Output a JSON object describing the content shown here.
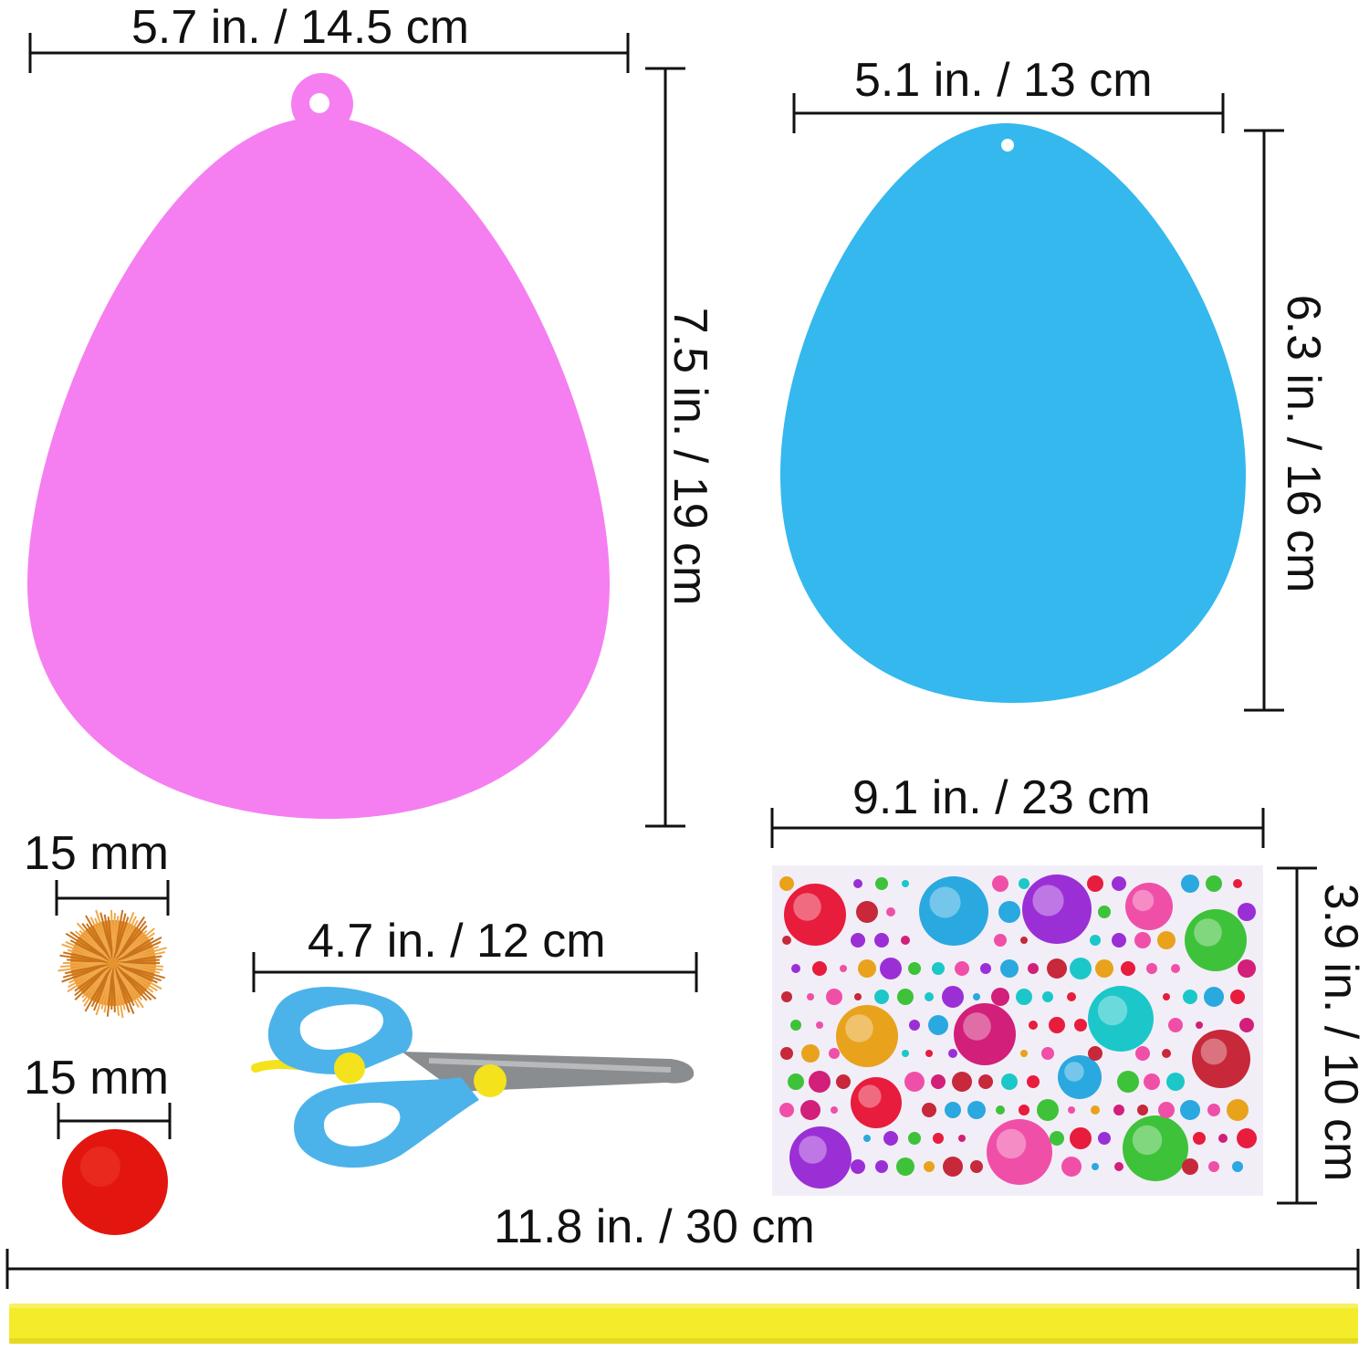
{
  "items": {
    "pink_egg": {
      "color": "#f57ff0",
      "width_label": "5.7 in. / 14.5 cm",
      "height_label": "7.5 in. / 19 cm"
    },
    "blue_egg": {
      "color": "#34b8ee",
      "width_label": "5.1 in. / 13 cm",
      "height_label": "6.3 in. / 16 cm"
    },
    "orange_pompom": {
      "color": "#e8922e",
      "size_label": "15 mm"
    },
    "red_pompom": {
      "color": "#e3160f",
      "size_label": "15 mm"
    },
    "scissors": {
      "handle_color": "#4cb3ea",
      "pivot_color": "#f4e21d",
      "width_label": "4.7 in. / 12 cm"
    },
    "gem_sheet": {
      "width_label": "9.1 in. / 23 cm",
      "height_label": "3.9 in. / 10 cm"
    },
    "yellow_strip": {
      "color": "#f4ec2a",
      "length_label": "11.8 in. / 30 cm"
    }
  }
}
